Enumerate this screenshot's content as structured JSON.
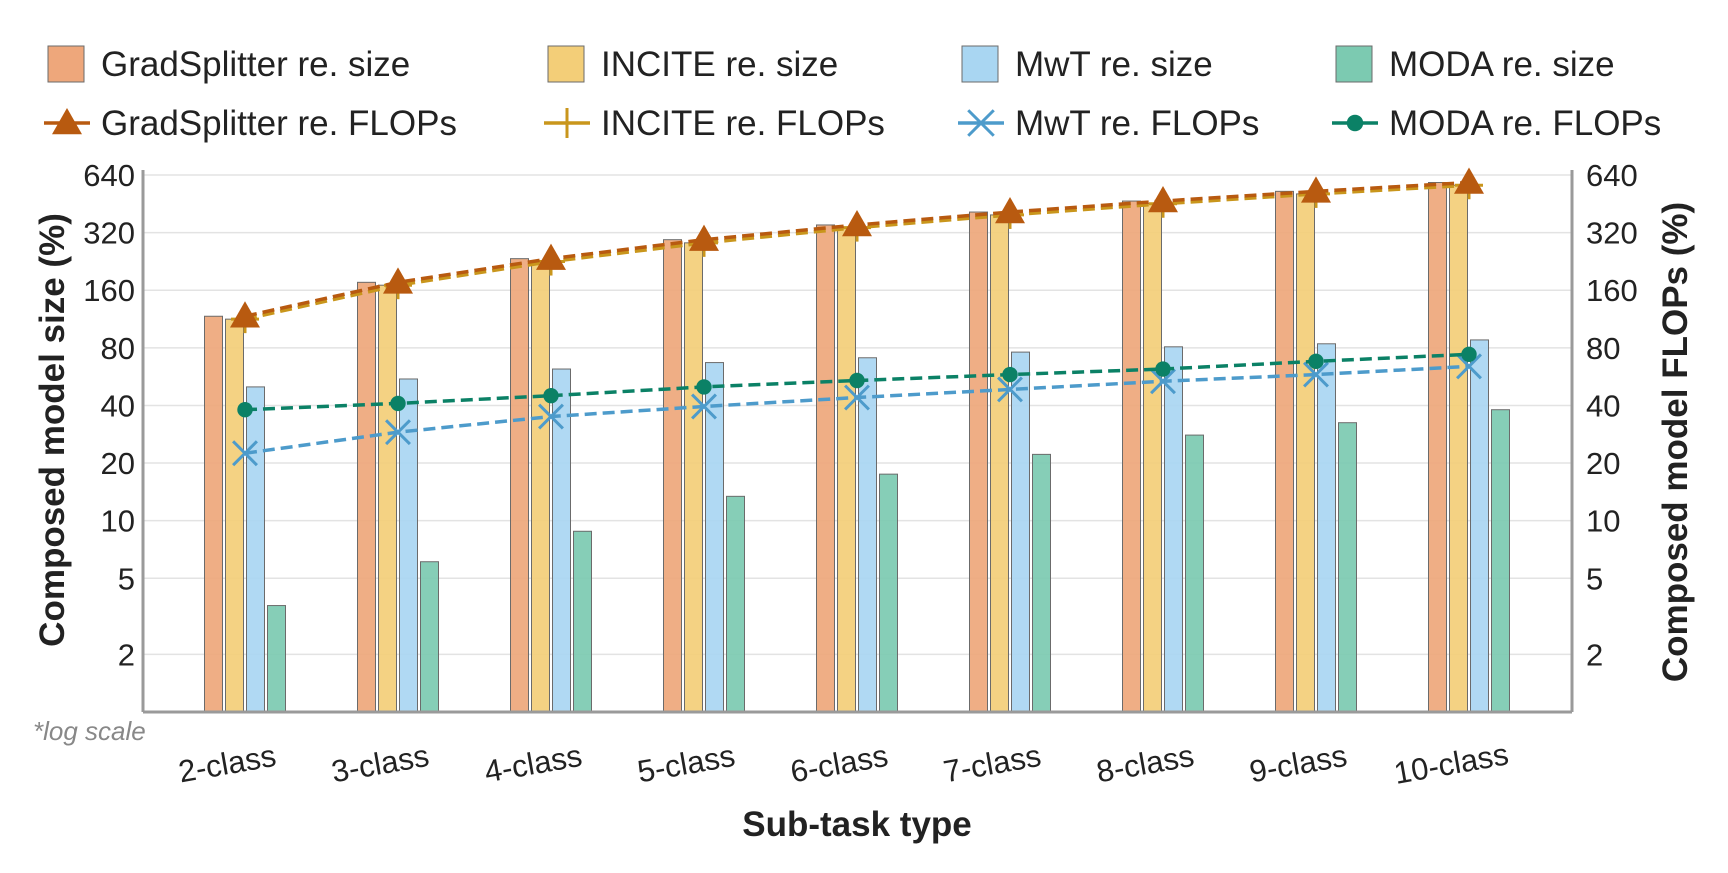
{
  "chart_data": {
    "type": "bar",
    "xlabel": "Sub-task type",
    "ylabel": "Composed model size (%)",
    "y2label": "Composed model FLOPs (%)",
    "note": "*log scale",
    "yscale": "log",
    "ylim": [
      1,
      680
    ],
    "yticks": [
      2,
      5,
      10,
      20,
      40,
      80,
      160,
      320,
      640
    ],
    "grid": true,
    "legend_position": "top",
    "categories": [
      "2-class",
      "3-class",
      "4-class",
      "5-class",
      "6-class",
      "7-class",
      "8-class",
      "9-class",
      "10-class"
    ],
    "bar_series": [
      {
        "name": "GradSplitter re. size",
        "color": "#eea77b",
        "values": [
          117,
          176,
          234,
          294,
          351,
          410,
          468,
          526,
          585
        ]
      },
      {
        "name": "INCITE re. size",
        "color": "#f3ce78",
        "values": [
          113,
          170,
          226,
          283,
          340,
          396,
          453,
          510,
          566
        ]
      },
      {
        "name": "MwT re. size",
        "color": "#a9d6f2",
        "values": [
          50,
          55,
          62,
          67,
          71,
          76,
          81,
          84,
          88
        ]
      },
      {
        "name": "MODA re. size",
        "color": "#7ccab1",
        "values": [
          3.6,
          6.1,
          8.8,
          13.4,
          17.5,
          22.2,
          28,
          32.5,
          38
        ]
      }
    ],
    "line_series": [
      {
        "name": "GradSplitter re. FLOPs",
        "color": "#b85a10",
        "marker": "triangle",
        "values": [
          117,
          176,
          234,
          294,
          351,
          410,
          468,
          526,
          585
        ]
      },
      {
        "name": "INCITE re. FLOPs",
        "color": "#c9961c",
        "marker": "plus",
        "values": [
          113,
          170,
          226,
          283,
          340,
          396,
          453,
          510,
          566
        ]
      },
      {
        "name": "MwT re. FLOPs",
        "color": "#4d9bcb",
        "marker": "x",
        "values": [
          22.5,
          29,
          35,
          39.5,
          44,
          48.5,
          53.5,
          58,
          64
        ]
      },
      {
        "name": "MODA re. FLOPs",
        "color": "#0b8166",
        "marker": "dot",
        "values": [
          38,
          41,
          45,
          50,
          54,
          58,
          62,
          68,
          74
        ]
      }
    ]
  }
}
